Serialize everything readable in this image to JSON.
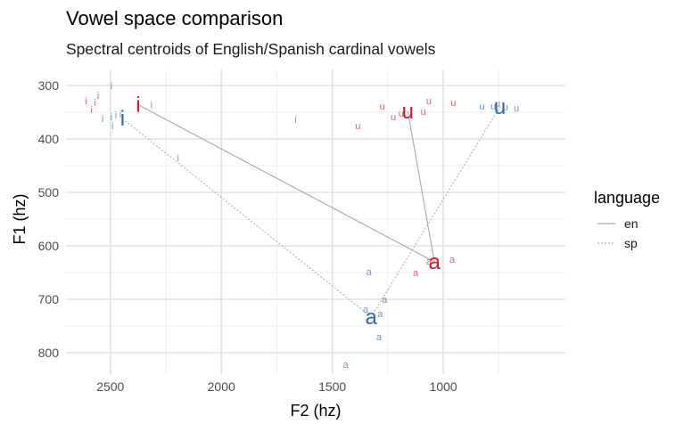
{
  "chart_data": {
    "type": "scatter",
    "title": "Vowel space comparison",
    "subtitle": "Spectral centroids of English/Spanish cardinal vowels",
    "xlabel": "F2 (hz)",
    "ylabel": "F1 (hz)",
    "x_reversed": true,
    "y_reversed": true,
    "xlim": [
      2700,
      450
    ],
    "ylim": [
      270,
      840
    ],
    "x_ticks": [
      2500,
      2000,
      1500,
      1000
    ],
    "y_ticks": [
      300,
      400,
      500,
      600,
      700,
      800
    ],
    "grid": true,
    "legend": {
      "title": "language",
      "position": "right",
      "entries": [
        {
          "label": "en",
          "linetype": "solid"
        },
        {
          "label": "sp",
          "linetype": "dotted"
        }
      ]
    },
    "colors": {
      "en": "#e0525c",
      "sp": "#5b8cc4",
      "en_centroid": "#d4162a",
      "sp_centroid": "#2c69ad",
      "line_en": "#a8a8a8",
      "line_sp": "#b0b0b0"
    },
    "series": [
      {
        "name": "en",
        "tokens": [
          {
            "label": "i",
            "x": 2610,
            "y": 328
          },
          {
            "label": "i",
            "x": 2570,
            "y": 332
          },
          {
            "label": "i",
            "x": 2555,
            "y": 318
          },
          {
            "label": "i",
            "x": 2585,
            "y": 345
          },
          {
            "label": "i",
            "x": 2535,
            "y": 362
          },
          {
            "label": "i",
            "x": 2315,
            "y": 336
          },
          {
            "label": "i",
            "x": 1665,
            "y": 363
          },
          {
            "label": "u",
            "x": 1385,
            "y": 375
          },
          {
            "label": "u",
            "x": 1275,
            "y": 338
          },
          {
            "label": "u",
            "x": 1225,
            "y": 358
          },
          {
            "label": "u",
            "x": 1190,
            "y": 352
          },
          {
            "label": "u",
            "x": 1090,
            "y": 348
          },
          {
            "label": "u",
            "x": 1065,
            "y": 328
          },
          {
            "label": "u",
            "x": 955,
            "y": 332
          },
          {
            "label": "a",
            "x": 1125,
            "y": 650
          },
          {
            "label": "a",
            "x": 1065,
            "y": 628
          },
          {
            "label": "a",
            "x": 960,
            "y": 625
          }
        ],
        "centroids": [
          {
            "label": "i",
            "x": 2375,
            "y": 336
          },
          {
            "label": "u",
            "x": 1160,
            "y": 348
          },
          {
            "label": "a",
            "x": 1040,
            "y": 630
          }
        ]
      },
      {
        "name": "sp",
        "tokens": [
          {
            "label": "i",
            "x": 2495,
            "y": 300
          },
          {
            "label": "i",
            "x": 2495,
            "y": 358
          },
          {
            "label": "i",
            "x": 2475,
            "y": 355
          },
          {
            "label": "i",
            "x": 2455,
            "y": 353
          },
          {
            "label": "i",
            "x": 2490,
            "y": 375
          },
          {
            "label": "i",
            "x": 2195,
            "y": 435
          },
          {
            "label": "u",
            "x": 825,
            "y": 338
          },
          {
            "label": "u",
            "x": 775,
            "y": 338
          },
          {
            "label": "u",
            "x": 755,
            "y": 333
          },
          {
            "label": "u",
            "x": 720,
            "y": 340
          },
          {
            "label": "u",
            "x": 670,
            "y": 342
          },
          {
            "label": "a",
            "x": 1335,
            "y": 648
          },
          {
            "label": "a",
            "x": 1265,
            "y": 700
          },
          {
            "label": "a",
            "x": 1350,
            "y": 718
          },
          {
            "label": "a",
            "x": 1285,
            "y": 727
          },
          {
            "label": "a",
            "x": 1290,
            "y": 770
          },
          {
            "label": "a",
            "x": 1440,
            "y": 822
          }
        ],
        "centroids": [
          {
            "label": "i",
            "x": 2445,
            "y": 362
          },
          {
            "label": "u",
            "x": 745,
            "y": 340
          },
          {
            "label": "a",
            "x": 1325,
            "y": 733
          }
        ]
      }
    ]
  }
}
